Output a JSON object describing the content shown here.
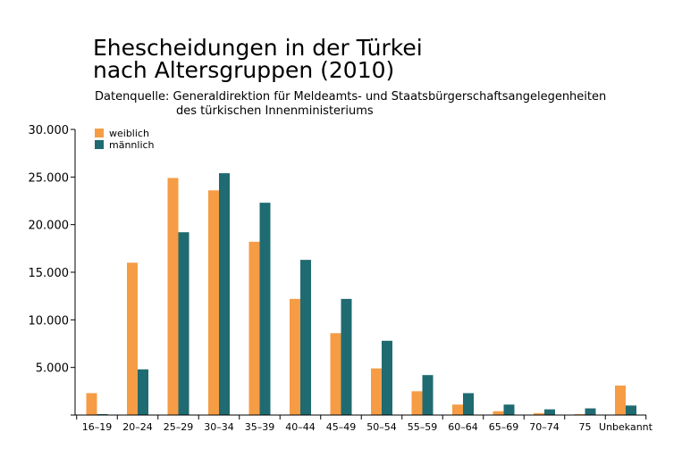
{
  "title_lines": [
    "Ehescheidungen in der Türkei",
    "nach Altersgruppen (2010)"
  ],
  "source_lines": [
    "Datenquelle: Generaldirektion für Meldeamts- und Staatsbürgerschaftsangelegenheiten",
    "des türkischen Innenministeriums"
  ],
  "colors": {
    "weiblich": "#f59c45",
    "maennlich": "#1f6b71"
  },
  "chart_data": {
    "type": "bar",
    "title": "Ehescheidungen in der Türkei nach Altersgruppen (2010)",
    "subtitle": "Datenquelle: Generaldirektion für Meldeamts- und Staatsbürgerschaftsangelegenheiten des türkischen Innenministeriums",
    "categories": [
      "16–19",
      "20–24",
      "25–29",
      "30–34",
      "35–39",
      "40–44",
      "45–49",
      "50–54",
      "55–59",
      "60–64",
      "65–69",
      "70–74",
      "75",
      "Unbekannt"
    ],
    "series": [
      {
        "name": "weiblich",
        "values": [
          2300,
          16000,
          24900,
          23600,
          18200,
          12200,
          8600,
          4900,
          2500,
          1100,
          400,
          200,
          100,
          3100
        ]
      },
      {
        "name": "männlich",
        "values": [
          100,
          4800,
          19200,
          25400,
          22300,
          16300,
          12200,
          7800,
          4200,
          2300,
          1100,
          600,
          700,
          1000
        ]
      }
    ],
    "ylim": [
      0,
      30000
    ],
    "yticks": [
      5000,
      10000,
      15000,
      20000,
      25000,
      30000
    ],
    "ytick_labels": [
      "5.000",
      "10.000",
      "15.000",
      "20.000",
      "25.000",
      "30.000"
    ],
    "xlabel": "",
    "ylabel": "",
    "grid": false,
    "legend_position": "top-left"
  }
}
